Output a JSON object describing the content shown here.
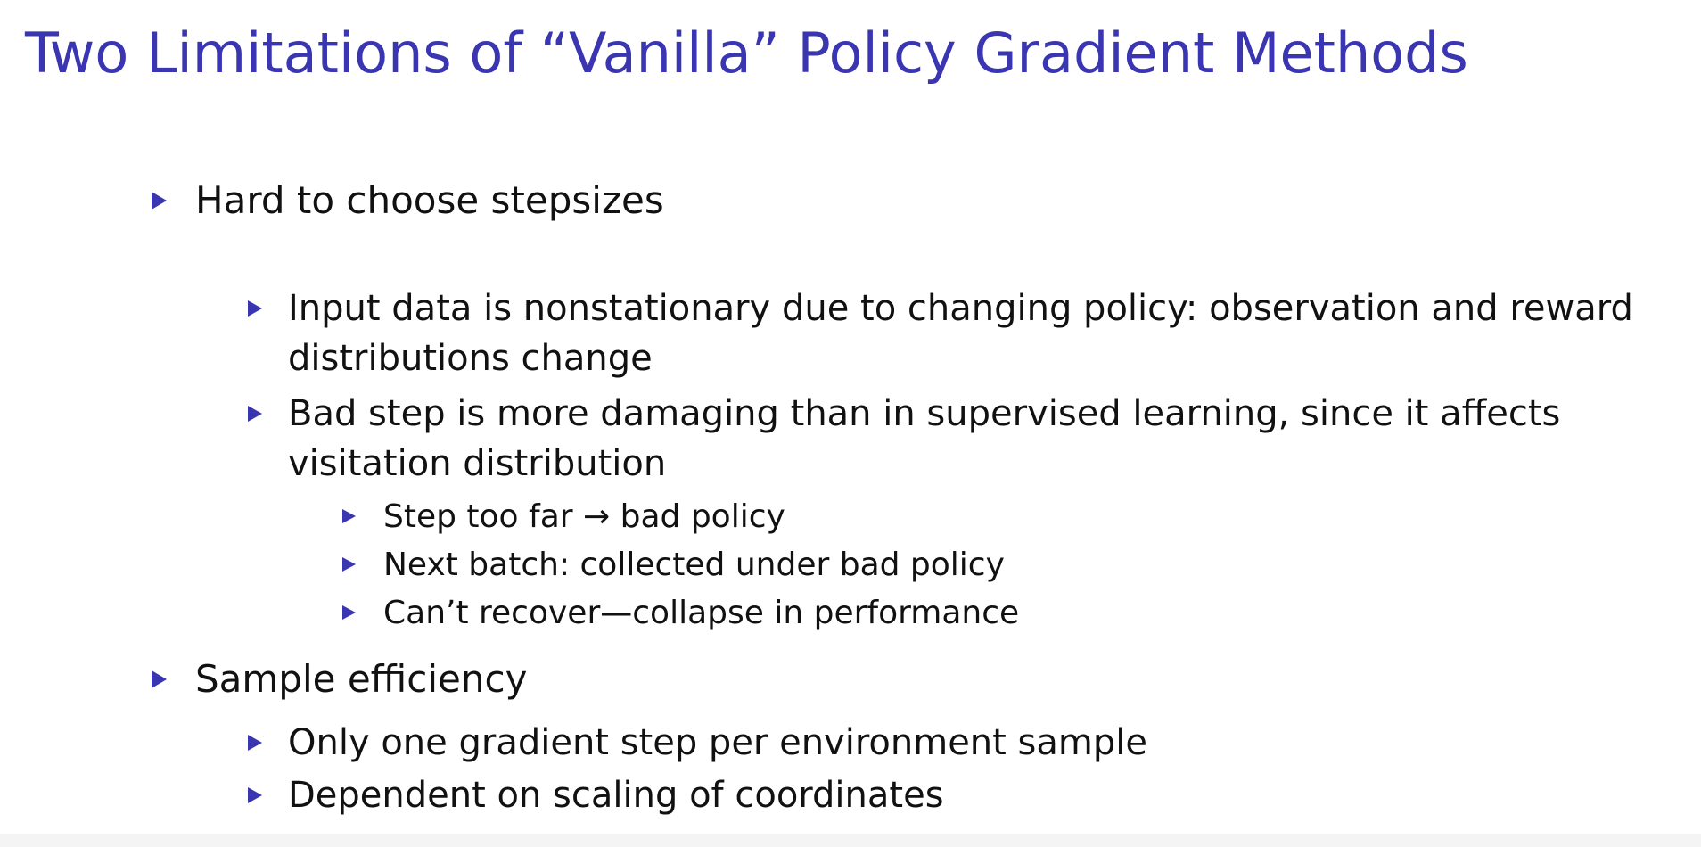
{
  "slide": {
    "title": "Two Limitations of “Vanilla” Policy Gradient Methods",
    "sections": [
      {
        "heading": "Hard to choose stepsizes",
        "items": [
          {
            "text": "Input data is nonstationary due to changing policy: observation and reward distributions change"
          },
          {
            "text": "Bad step is more damaging than in supervised learning, since it affects visitation distribution",
            "subitems": [
              "Step too far → bad policy",
              "Next batch: collected under bad policy",
              "Can’t recover—collapse in performance"
            ]
          }
        ]
      },
      {
        "heading": "Sample efficiency",
        "items": [
          {
            "text": "Only one gradient step per environment sample"
          },
          {
            "text": "Dependent on scaling of coordinates"
          }
        ]
      }
    ],
    "accent_color": "#3a35b0",
    "bullet_icon": "triangle-right-icon"
  }
}
